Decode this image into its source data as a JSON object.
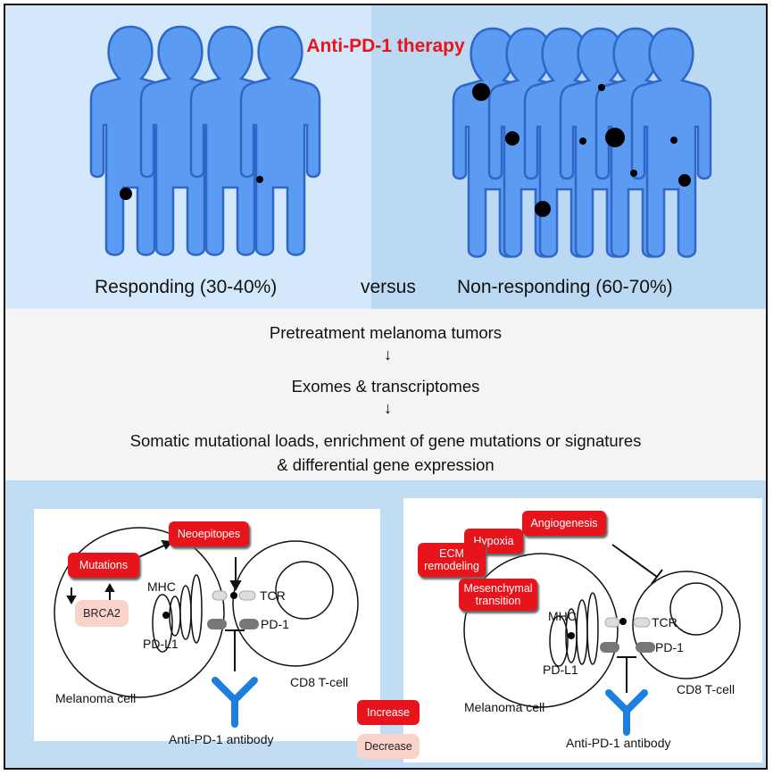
{
  "title": "Anti-PD-1 therapy",
  "groups": {
    "responding": "Responding (30-40%)",
    "versus": "versus",
    "non_responding": "Non-responding (60-70%)"
  },
  "workflow": {
    "step1": "Pretreatment melanoma tumors",
    "step2": "Exomes & transcriptomes",
    "step3_line1": "Somatic mutational loads, enrichment of gene mutations or signatures",
    "step3_line2": "& differential gene expression"
  },
  "left_panel": {
    "neoepitopes": "Neoepitopes",
    "mutations": "Mutations",
    "brca2": "BRCA2",
    "mhc": "MHC",
    "tcr": "TCR",
    "pd1": "PD-1",
    "pdl1": "PD-L1",
    "melanoma_cell": "Melanoma cell",
    "cd8_tcell": "CD8 T-cell",
    "antibody": "Anti-PD-1 antibody"
  },
  "right_panel": {
    "angiogenesis": "Angiogenesis",
    "hypoxia": "Hypoxia",
    "ecm_line1": "ECM",
    "ecm_line2": "remodeling",
    "mes_line1": "Mesenchymal",
    "mes_line2": "transition",
    "mhc": "MHC",
    "tcr": "TCR",
    "pd1": "PD-1",
    "pdl1": "PD-L1",
    "melanoma_cell": "Melanoma cell",
    "cd8_tcell": "CD8 T-cell",
    "antibody": "Anti-PD-1 antibody"
  },
  "legend": {
    "increase": "Increase",
    "decrease": "Decrease"
  },
  "colors": {
    "accent_red": "#e8141c",
    "person_fill": "#5b9cf2",
    "person_stroke": "#2f67c8",
    "antibody": "#1c7fe0",
    "decrease_fill": "#f9d3c9"
  }
}
